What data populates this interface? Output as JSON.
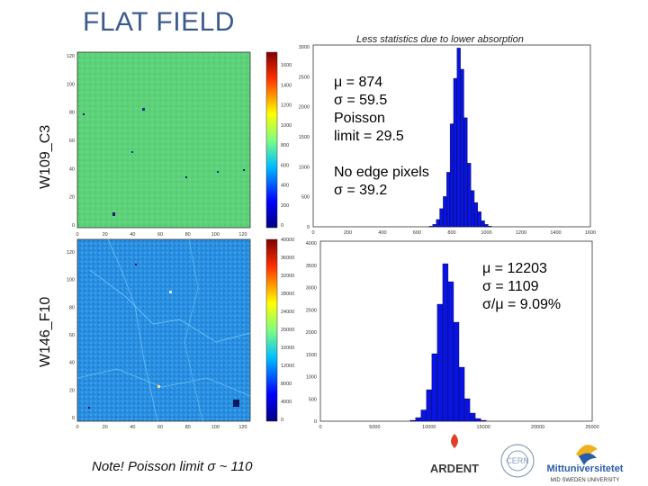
{
  "title": "FLAT FIELD",
  "top_note": "Less statistics due to lower absorption",
  "row_labels": [
    "W109_C3",
    "W146_F10"
  ],
  "stats_a_main": "μ = 874\nσ = 59.5\nPoisson\nlimit = 29.5",
  "stats_a_edge": "No edge pixels\nσ = 39.2",
  "stats_b": "μ = 12203\nσ = 1109\nσ/μ = 9.09%",
  "bottom_note": "Note! Poisson limit σ ~ 110",
  "logos": [
    "ARDENT",
    "CERN",
    "Mittuniversitetet",
    "MID SWEDEN UNIVERSITY"
  ],
  "colors": {
    "title": "#3b5b8f",
    "flat_a": "#5ed27a",
    "flat_b": "#2a8fe0",
    "hist": "#0a14e0"
  },
  "chart_data": [
    {
      "type": "heatmap",
      "name": "W109_C3 flat image",
      "x_ticks": [
        "0",
        "20",
        "40",
        "60",
        "80",
        "100",
        "120"
      ],
      "y_ticks": [
        "0",
        "20",
        "40",
        "60",
        "80",
        "100",
        "120"
      ],
      "colorbar_ticks": [
        "0",
        "200",
        "400",
        "600",
        "800",
        "1000",
        "1200",
        "1400",
        "1600"
      ]
    },
    {
      "type": "bar",
      "name": "W109_C3 histogram",
      "x_ticks": [
        "0",
        "200",
        "400",
        "600",
        "800",
        "1000",
        "1200",
        "1400",
        "1600"
      ],
      "y_ticks": [
        "0",
        "500",
        "1000",
        "1500",
        "2000",
        "2500",
        "3000"
      ],
      "xlim": [
        0,
        1600
      ],
      "ylim": [
        0,
        3000
      ],
      "bin_centers": [
        680,
        700,
        720,
        740,
        760,
        780,
        800,
        820,
        840,
        860,
        880,
        900,
        920,
        940,
        960,
        980,
        1000,
        1020
      ],
      "counts": [
        10,
        40,
        120,
        300,
        500,
        900,
        1700,
        2450,
        2950,
        2600,
        1800,
        1050,
        600,
        400,
        250,
        100,
        40,
        10
      ]
    },
    {
      "type": "heatmap",
      "name": "W146_F10 flat image",
      "x_ticks": [
        "0",
        "20",
        "40",
        "60",
        "80",
        "100",
        "120"
      ],
      "y_ticks": [
        "0",
        "20",
        "40",
        "60",
        "80",
        "100",
        "120"
      ],
      "colorbar_ticks": [
        "0",
        "4000",
        "8000",
        "12000",
        "16000",
        "20000",
        "24000",
        "28000",
        "32000",
        "36000",
        "40000"
      ]
    },
    {
      "type": "bar",
      "name": "W146_F10 histogram",
      "x_ticks": [
        "0",
        "5000",
        "10000",
        "15000",
        "20000",
        "25000"
      ],
      "y_ticks": [
        "0",
        "500",
        "1000",
        "1500",
        "2000",
        "2500",
        "3000",
        "3500",
        "4000"
      ],
      "xlim": [
        0,
        25000
      ],
      "ylim": [
        0,
        4000
      ],
      "bin_centers": [
        8500,
        9000,
        9500,
        10000,
        10500,
        11000,
        11500,
        12000,
        12500,
        13000,
        13500,
        14000,
        14500,
        15000
      ],
      "counts": [
        20,
        80,
        250,
        700,
        1500,
        2600,
        3500,
        3100,
        2200,
        1200,
        500,
        180,
        60,
        20
      ]
    }
  ]
}
